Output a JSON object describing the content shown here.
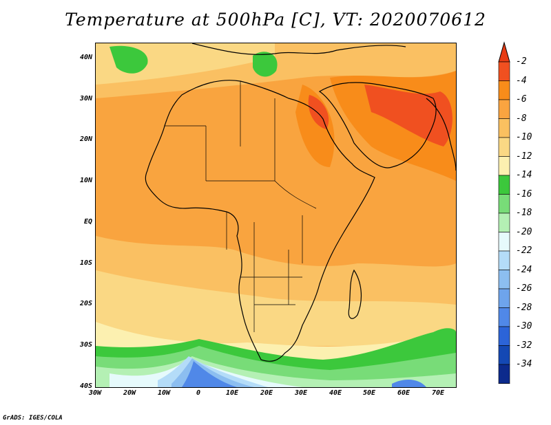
{
  "title": "Temperature at 500hPa [C], VT: 2020070612",
  "credit": "GrADS: IGES/COLA",
  "map": {
    "lon_range": [
      -30,
      75
    ],
    "lat_range": [
      -40,
      45
    ],
    "x_ticks": [
      "30W",
      "20W",
      "10W",
      "0",
      "10E",
      "20E",
      "30E",
      "40E",
      "50E",
      "60E",
      "70E"
    ],
    "y_ticks": [
      "40N",
      "30N",
      "20N",
      "10N",
      "EQ",
      "10S",
      "20S",
      "30S",
      "40S"
    ]
  },
  "colorbar": {
    "labels": [
      "-2",
      "-4",
      "-6",
      "-8",
      "-10",
      "-12",
      "-14",
      "-16",
      "-18",
      "-20",
      "-22",
      "-24",
      "-26",
      "-28",
      "-30",
      "-32",
      "-34"
    ],
    "colors": [
      "#f05020",
      "#f88c1a",
      "#faa440",
      "#fac060",
      "#fad884",
      "#fcf0b0",
      "#3cc83c",
      "#78dc78",
      "#b4f0b4",
      "#e6fafc",
      "#b4dcf8",
      "#8cbef0",
      "#6ea4ec",
      "#5088e8",
      "#2c64d8",
      "#1448b4",
      "#0c2a8c",
      "#0a1464"
    ],
    "over_color": "#e83c14",
    "under_color": "#dcd8f8"
  }
}
